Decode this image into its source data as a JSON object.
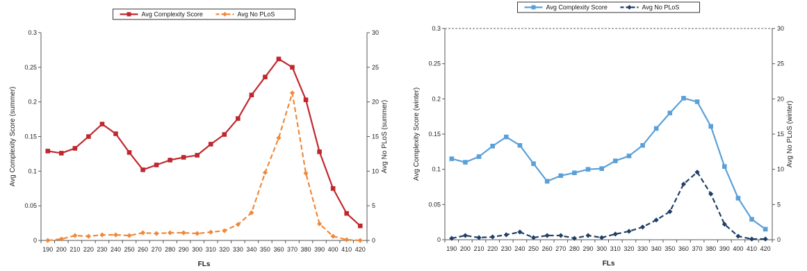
{
  "chart_data": [
    {
      "type": "line",
      "xlabel": "FLs",
      "ylabel": "Avg Complexity Score (summer)",
      "y2label": "Avg No PLoS (summer)",
      "ylim": [
        0,
        0.3
      ],
      "y2lim": [
        0,
        30
      ],
      "yticks": [
        "0",
        "0.05",
        "0.1",
        "0.15",
        "0.2",
        "0.25",
        "0.3"
      ],
      "y2ticks": [
        "0",
        "5",
        "10",
        "15",
        "20",
        "25",
        "30"
      ],
      "categories": [
        "190",
        "200",
        "210",
        "220",
        "230",
        "240",
        "250",
        "260",
        "270",
        "280",
        "290",
        "300",
        "310",
        "320",
        "330",
        "340",
        "350",
        "360",
        "370",
        "380",
        "390",
        "400",
        "410",
        "420"
      ],
      "grid": false,
      "legend_position": "top-center",
      "series": [
        {
          "name": "Avg Complexity Score",
          "axis": "left",
          "color": "#c0272d",
          "dash": false,
          "marker": "square",
          "values": [
            0.129,
            0.126,
            0.133,
            0.15,
            0.168,
            0.154,
            0.127,
            0.102,
            0.109,
            0.116,
            0.12,
            0.123,
            0.139,
            0.153,
            0.176,
            0.21,
            0.236,
            0.262,
            0.25,
            0.203,
            0.128,
            0.075,
            0.039,
            0.021
          ]
        },
        {
          "name": "Avg No PLoS",
          "axis": "right",
          "color": "#f0883a",
          "dash": true,
          "marker": "diamond",
          "values": [
            0.0,
            0.2,
            0.7,
            0.6,
            0.8,
            0.8,
            0.7,
            1.1,
            1.0,
            1.1,
            1.1,
            1.0,
            1.2,
            1.4,
            2.3,
            4.0,
            9.8,
            14.8,
            21.3,
            9.7,
            2.4,
            0.6,
            0.1,
            0.0
          ]
        }
      ]
    },
    {
      "type": "line",
      "xlabel": "FLs",
      "ylabel": "Avg Complexity Score (winter)",
      "y2label": "Avg No PLoS (winter)",
      "ylim": [
        0,
        0.3
      ],
      "y2lim": [
        0,
        30
      ],
      "yticks": [
        "0",
        "0.05",
        "0.1",
        "0.15",
        "0.2",
        "0.25",
        "0.3"
      ],
      "y2ticks": [
        "0",
        "5",
        "10",
        "15",
        "20",
        "25",
        "30"
      ],
      "categories": [
        "190",
        "200",
        "210",
        "220",
        "230",
        "240",
        "250",
        "260",
        "270",
        "280",
        "290",
        "300",
        "310",
        "320",
        "330",
        "340",
        "350",
        "360",
        "370",
        "380",
        "390",
        "400",
        "410",
        "420"
      ],
      "grid": false,
      "top_dashed_line": true,
      "legend_position": "top-center",
      "series": [
        {
          "name": "Avg Complexity Score",
          "axis": "left",
          "color": "#5aa0d8",
          "dash": false,
          "marker": "square",
          "values": [
            0.115,
            0.11,
            0.118,
            0.133,
            0.146,
            0.134,
            0.108,
            0.083,
            0.091,
            0.095,
            0.1,
            0.101,
            0.112,
            0.119,
            0.134,
            0.158,
            0.18,
            0.201,
            0.196,
            0.161,
            0.104,
            0.059,
            0.029,
            0.015
          ]
        },
        {
          "name": "Avg No PLoS",
          "axis": "right",
          "color": "#1f3f66",
          "dash": true,
          "marker": "diamond",
          "values": [
            0.2,
            0.6,
            0.3,
            0.4,
            0.7,
            1.1,
            0.3,
            0.6,
            0.6,
            0.2,
            0.6,
            0.3,
            0.8,
            1.2,
            1.8,
            2.8,
            4.0,
            7.9,
            9.6,
            6.5,
            2.2,
            0.5,
            0.1,
            0.1
          ]
        }
      ]
    }
  ]
}
